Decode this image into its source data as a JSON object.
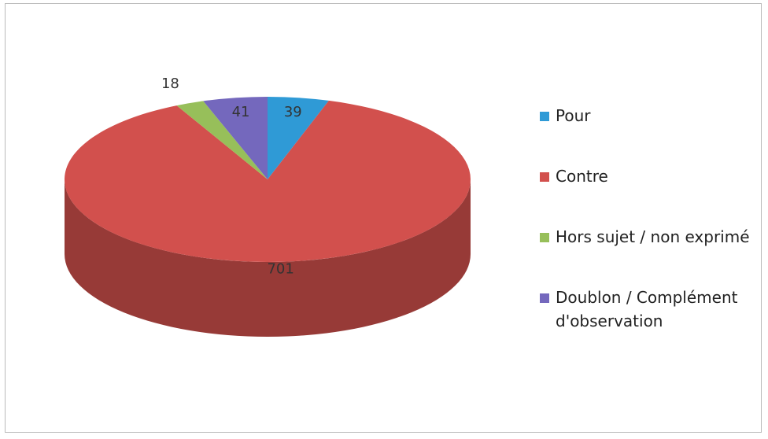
{
  "chart_data": {
    "type": "pie3d",
    "categories": [
      "Pour",
      "Contre",
      "Hors sujet / non exprimé",
      "Doublon / Complément d'observation"
    ],
    "values": [
      39,
      701,
      18,
      41
    ],
    "colors": [
      "#2f9ad6",
      "#d2504d",
      "#97bf5a",
      "#7468bd"
    ],
    "legend": "right"
  }
}
